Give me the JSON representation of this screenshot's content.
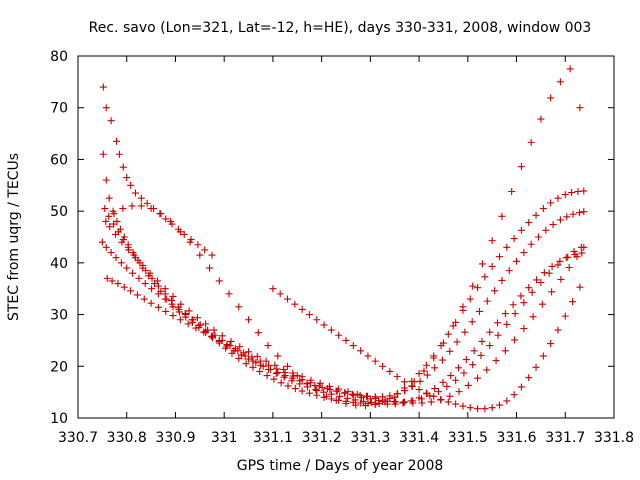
{
  "chart_data": {
    "type": "scatter",
    "title": "Rec. savo (Lon=321, Lat=-12, h=HE), days 330-331, 2008, window 003",
    "xlabel": "GPS time / Days of year 2008",
    "ylabel": "STEC from uqrg / TECUs",
    "xlim": [
      330.7,
      331.8
    ],
    "ylim": [
      10,
      80
    ],
    "x_ticks": [
      "330.7",
      "330.8",
      "330.9",
      "331",
      "331.1",
      "331.2",
      "331.3",
      "331.4",
      "331.5",
      "331.6",
      "331.7",
      "331.8"
    ],
    "y_ticks": [
      "10",
      "20",
      "30",
      "40",
      "50",
      "60",
      "70",
      "80"
    ],
    "marker": "+",
    "marker_color": "#cc0000",
    "grid": false,
    "series": [
      {
        "x": [
          330.752,
          330.758,
          330.768,
          330.779,
          330.785,
          330.793,
          330.8,
          330.808,
          330.818,
          330.83,
          330.842,
          330.855,
          330.868,
          330.88,
          330.893,
          330.906,
          330.918,
          330.932,
          330.946,
          330.96,
          330.975,
          330.752,
          330.758,
          330.764,
          330.772,
          330.78,
          330.787,
          330.795,
          330.803,
          330.813,
          330.823,
          330.833,
          330.845,
          330.857,
          330.87,
          330.882,
          330.895,
          330.908,
          330.921,
          330.935,
          330.948,
          330.962,
          330.976,
          330.99,
          331.003,
          331.016,
          331.03,
          331.045,
          331.059,
          331.073,
          331.088,
          331.102,
          331.117,
          331.131,
          331.146,
          331.16,
          331.175,
          331.19,
          331.205,
          331.22,
          331.235,
          331.25,
          331.265,
          331.28,
          331.295,
          331.31,
          331.325,
          331.34,
          331.355,
          331.37,
          331.385,
          331.4,
          331.415,
          331.43,
          331.445,
          331.46,
          331.475,
          331.49,
          331.505,
          331.52,
          331.535,
          331.55,
          331.565,
          331.58,
          331.595,
          331.61,
          331.625,
          331.64,
          331.655,
          331.67,
          331.685,
          331.7,
          331.713,
          331.726,
          331.738,
          330.755,
          330.763,
          330.773,
          330.783,
          330.793,
          330.803,
          330.815,
          330.827,
          330.839,
          330.852,
          330.865,
          330.879,
          330.892,
          330.906,
          330.92,
          330.934,
          330.948,
          330.962,
          330.976,
          330.99,
          331.005,
          331.02,
          331.035,
          331.05,
          331.065,
          331.08,
          331.095,
          331.11,
          331.125,
          331.14,
          331.155,
          331.17,
          331.186,
          331.201,
          331.217,
          331.232,
          331.248,
          331.263,
          331.279,
          331.294,
          331.31,
          331.325,
          331.34,
          331.356,
          331.371,
          331.386,
          331.402,
          331.417,
          331.432,
          331.448,
          331.463,
          331.478,
          331.494,
          331.509,
          331.524,
          331.54,
          331.555,
          331.57,
          331.585,
          331.6,
          331.615,
          331.63,
          331.645,
          331.66,
          331.675,
          331.69,
          331.703,
          331.716,
          331.729,
          331.738,
          330.75,
          330.758,
          330.768,
          330.778,
          330.789,
          330.8,
          330.812,
          330.825,
          330.838,
          330.851,
          330.865,
          330.879,
          330.893,
          330.907,
          330.921,
          330.936,
          330.951,
          330.966,
          330.981,
          330.996,
          331.012,
          331.028,
          331.043,
          331.059,
          331.075,
          331.091,
          331.107,
          331.123,
          331.139,
          331.155,
          331.171,
          331.188,
          331.204,
          331.22,
          331.237,
          331.253,
          331.269,
          331.286,
          331.302,
          331.318,
          331.335,
          331.351,
          331.367,
          331.384,
          331.4,
          331.416,
          331.432,
          331.449,
          331.465,
          331.481,
          331.497,
          331.513,
          331.529,
          331.545,
          331.561,
          331.577,
          331.593,
          331.609,
          331.625,
          331.641,
          331.657,
          331.673,
          331.689,
          331.705,
          331.72,
          331.734,
          330.76,
          330.77,
          330.782,
          330.795,
          330.808,
          330.822,
          330.836,
          330.85,
          330.865,
          330.88,
          330.895,
          330.91,
          330.926,
          330.942,
          330.958,
          330.974,
          330.99,
          331.006,
          331.023,
          331.04,
          331.057,
          331.074,
          331.091,
          331.108,
          331.125,
          331.142,
          331.16,
          331.177,
          331.195,
          331.212,
          331.23,
          331.247,
          331.265,
          331.282,
          331.3,
          331.317,
          331.335,
          331.352,
          331.37,
          331.387,
          331.405,
          331.422,
          331.44,
          331.457,
          331.475,
          331.492,
          331.51,
          331.527,
          331.545,
          331.562,
          331.58,
          331.597,
          331.615,
          331.632,
          331.65,
          331.667,
          331.685,
          331.702,
          331.718,
          331.733,
          330.765,
          330.777,
          330.79,
          330.804,
          330.818,
          330.833,
          330.848,
          330.863,
          330.879,
          330.895,
          330.911,
          330.928,
          330.945,
          330.962,
          330.979,
          330.996,
          331.014,
          331.032,
          331.05,
          331.068,
          331.086,
          331.104,
          331.122,
          331.141,
          331.16,
          331.178,
          331.197,
          331.216,
          331.235,
          331.254,
          331.273,
          331.292,
          331.311,
          331.33,
          331.349,
          331.368,
          331.387,
          331.406,
          331.425,
          331.444,
          331.463,
          331.482,
          331.501,
          331.52,
          331.539,
          331.558,
          331.577,
          331.596,
          331.615,
          331.634,
          331.653,
          331.672,
          331.691,
          331.708,
          331.724,
          331.738,
          331.1,
          331.115,
          331.13,
          331.145,
          331.16,
          331.175,
          331.19,
          331.205,
          331.22,
          331.235,
          331.25,
          331.265,
          331.28,
          331.295,
          331.31,
          331.325,
          331.34,
          331.355,
          331.37,
          331.385,
          331.4,
          331.415,
          331.43,
          331.445,
          331.46,
          331.475,
          331.49,
          331.505,
          331.52,
          331.535,
          331.55,
          331.565,
          331.58,
          331.595,
          331.61,
          331.625,
          331.64,
          331.655,
          331.67,
          331.685,
          331.7,
          331.715,
          331.73,
          330.757,
          330.774,
          330.792,
          330.811,
          330.83,
          330.85,
          330.87,
          330.89,
          330.91,
          330.93,
          330.95,
          330.97,
          330.99,
          331.01,
          331.03,
          331.05,
          331.07,
          331.09,
          331.11,
          331.13,
          331.15,
          331.17,
          331.19,
          331.21,
          331.23,
          331.25,
          331.27,
          331.29,
          331.31,
          331.33,
          331.35,
          331.37,
          331.39,
          331.41,
          331.43,
          331.45,
          331.47,
          331.49,
          331.51,
          331.53,
          331.55,
          331.57,
          331.59,
          331.61,
          331.63,
          331.65,
          331.67,
          331.69,
          331.71,
          331.73
        ],
        "y": [
          74.0,
          70.0,
          67.5,
          63.5,
          61.0,
          58.5,
          56.5,
          55.0,
          53.5,
          52.5,
          51.5,
          50.5,
          49.5,
          48.5,
          47.5,
          46.5,
          45.5,
          44.5,
          43.5,
          42.5,
          41.5,
          61.0,
          56.0,
          52.5,
          50.0,
          48.0,
          46.5,
          45.0,
          43.5,
          42.0,
          40.5,
          39.0,
          37.5,
          36.0,
          34.5,
          33.0,
          31.5,
          30.5,
          29.5,
          28.5,
          27.5,
          26.5,
          25.5,
          24.5,
          23.5,
          22.5,
          21.5,
          20.5,
          19.8,
          19.0,
          18.2,
          17.5,
          16.8,
          16.2,
          15.7,
          15.2,
          14.8,
          14.4,
          14.0,
          13.7,
          13.4,
          13.2,
          13.0,
          12.9,
          12.8,
          12.9,
          13.2,
          13.8,
          14.7,
          15.8,
          17.1,
          18.6,
          20.2,
          22.0,
          24.0,
          26.2,
          28.5,
          30.8,
          33.0,
          35.2,
          37.3,
          39.3,
          41.2,
          43.0,
          44.7,
          46.3,
          47.8,
          49.2,
          50.5,
          51.6,
          52.5,
          53.2,
          53.6,
          53.8,
          53.9,
          50.5,
          49.0,
          47.5,
          46.0,
          44.5,
          43.0,
          41.5,
          40.0,
          38.5,
          37.0,
          35.5,
          34.0,
          32.7,
          31.4,
          30.2,
          29.0,
          27.9,
          26.8,
          25.8,
          24.8,
          23.9,
          23.0,
          22.2,
          21.4,
          20.7,
          20.0,
          19.4,
          18.8,
          18.2,
          17.7,
          17.2,
          16.7,
          16.3,
          15.9,
          15.5,
          15.2,
          14.9,
          14.6,
          14.4,
          14.2,
          14.1,
          14.1,
          14.3,
          14.7,
          15.3,
          16.1,
          17.1,
          18.3,
          19.7,
          21.2,
          22.9,
          24.7,
          26.6,
          28.6,
          30.6,
          32.6,
          34.6,
          36.6,
          38.5,
          40.3,
          42.0,
          43.6,
          45.0,
          46.3,
          47.4,
          48.3,
          48.9,
          49.4,
          49.7,
          49.9,
          44.0,
          43.0,
          42.0,
          41.0,
          40.0,
          39.0,
          38.0,
          37.0,
          36.0,
          35.0,
          34.0,
          33.0,
          32.0,
          31.0,
          30.0,
          29.0,
          28.0,
          27.0,
          26.0,
          25.0,
          24.0,
          23.0,
          22.0,
          21.0,
          20.2,
          19.4,
          18.6,
          17.9,
          17.2,
          16.6,
          16.0,
          15.5,
          15.0,
          14.6,
          14.2,
          13.8,
          13.5,
          13.2,
          13.0,
          12.8,
          12.7,
          12.7,
          12.9,
          13.3,
          13.9,
          14.7,
          15.7,
          16.9,
          18.2,
          19.7,
          21.3,
          23.0,
          24.8,
          26.6,
          28.4,
          30.2,
          31.9,
          33.6,
          35.2,
          36.7,
          38.1,
          39.3,
          40.3,
          41.1,
          41.6,
          41.9,
          37.0,
          36.5,
          36.0,
          35.3,
          34.6,
          33.8,
          33.0,
          32.2,
          31.4,
          30.6,
          29.8,
          29.0,
          28.2,
          27.4,
          26.6,
          25.8,
          25.0,
          24.2,
          23.4,
          22.6,
          21.8,
          21.0,
          20.2,
          19.5,
          18.8,
          18.1,
          17.4,
          16.8,
          16.2,
          15.7,
          15.2,
          14.8,
          14.4,
          14.0,
          13.7,
          13.4,
          13.2,
          13.1,
          13.1,
          13.3,
          13.7,
          14.3,
          15.1,
          16.1,
          17.3,
          18.7,
          20.3,
          22.1,
          24.0,
          26.0,
          28.1,
          30.2,
          32.3,
          34.3,
          36.2,
          38.0,
          39.6,
          41.0,
          42.2,
          43.0,
          47.0,
          45.5,
          44.0,
          42.5,
          41.0,
          39.5,
          38.0,
          36.5,
          35.0,
          33.5,
          32.0,
          30.7,
          29.4,
          28.2,
          27.0,
          25.9,
          24.8,
          23.8,
          22.8,
          21.9,
          21.0,
          20.2,
          19.4,
          18.7,
          18.0,
          17.3,
          16.7,
          16.1,
          15.6,
          15.1,
          14.6,
          14.2,
          13.8,
          13.5,
          13.2,
          13.0,
          12.9,
          12.9,
          13.1,
          13.5,
          14.2,
          15.1,
          16.3,
          17.7,
          19.3,
          21.1,
          23.0,
          25.1,
          27.3,
          29.6,
          32.0,
          34.4,
          36.8,
          39.1,
          41.2,
          43.0,
          35.0,
          34.0,
          33.0,
          32.0,
          31.0,
          30.0,
          29.0,
          28.0,
          27.0,
          26.0,
          25.0,
          24.0,
          23.0,
          22.0,
          21.0,
          20.0,
          19.0,
          18.0,
          17.0,
          16.2,
          15.5,
          14.8,
          14.2,
          13.6,
          13.1,
          12.7,
          12.3,
          12.0,
          11.8,
          11.8,
          12.0,
          12.5,
          13.3,
          14.5,
          16.0,
          17.8,
          19.8,
          22.0,
          24.4,
          27.0,
          29.7,
          32.5,
          35.3,
          48.0,
          49.5,
          50.5,
          51.0,
          51.0,
          50.5,
          49.5,
          48.0,
          46.0,
          44.0,
          41.5,
          39.0,
          36.5,
          34.0,
          31.5,
          29.0,
          26.5,
          24.0,
          22.0,
          20.0,
          18.2,
          16.6,
          15.3,
          14.2,
          13.4,
          12.8,
          12.5,
          12.4,
          12.6,
          13.1,
          14.0,
          15.3,
          17.0,
          19.1,
          21.6,
          24.5,
          27.8,
          31.5,
          35.5,
          39.8,
          44.3,
          49.0,
          53.8,
          58.6,
          63.3,
          67.8,
          71.9,
          75.0,
          77.5,
          70.0
        ]
      }
    ]
  }
}
